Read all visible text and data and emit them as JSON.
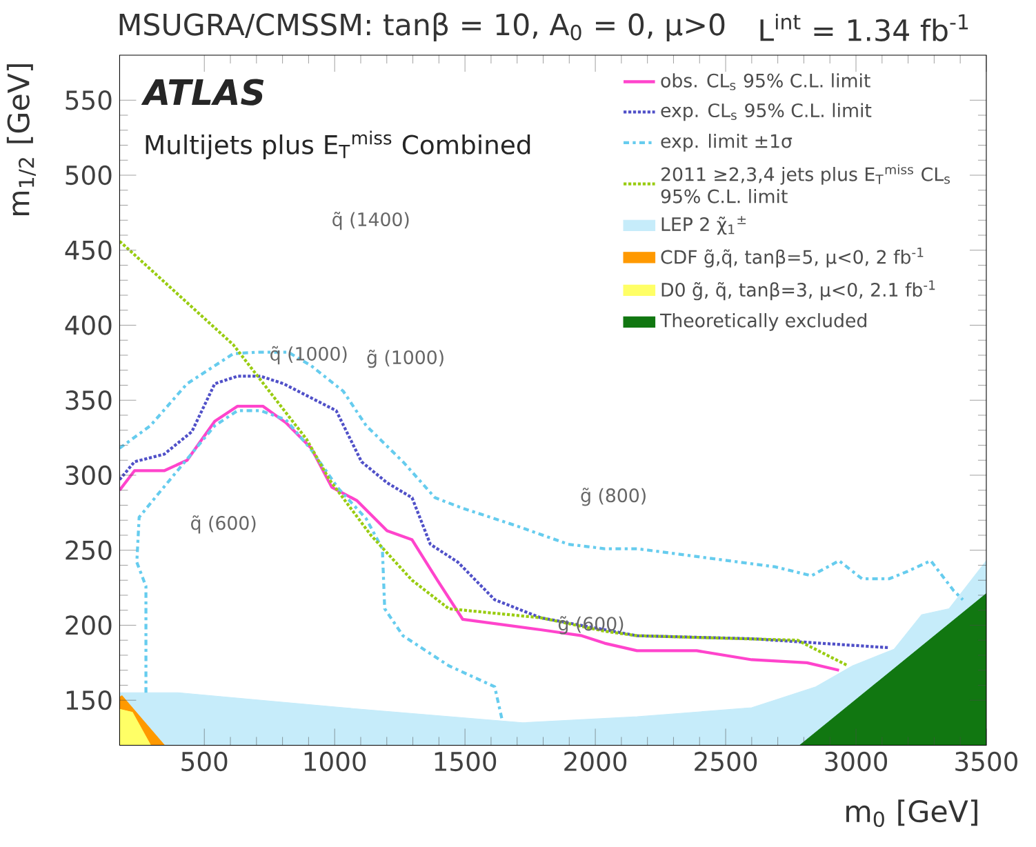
{
  "chart_data": {
    "type": "line",
    "title": "MSUGRA/CMSSM: tanβ = 10, A$_{0}$ = 0, μ>0",
    "subtitle": "L$^{int}$ = 1.34 fb$^{-1}$",
    "xlabel": "m$_{0}$ [GeV]",
    "ylabel": "m$_{1/2}$ [GeV]",
    "xlim": [
      175,
      3500
    ],
    "ylim": [
      120,
      580
    ],
    "xticks": [
      500,
      1000,
      1500,
      2000,
      2500,
      3000,
      3500
    ],
    "yticks": [
      150,
      200,
      250,
      300,
      350,
      400,
      450,
      500,
      550
    ],
    "legend": "top right",
    "marker": "none",
    "grid": false,
    "annotations": [
      "ATLAS",
      "Multijets plus E$_{T}$$^{miss}$ Combined",
      "q̃ (1400)",
      {
        "text": "q̃ (1000)",
        "x": 901,
        "y": 380
      },
      "g̃ (1000)",
      "q̃ (600)",
      "g̃ (800)",
      {
        "text": "g̃ (600)",
        "x": 1984,
        "y": 200
      }
    ],
    "series": [
      {
        "name": "obs. CL$_{s}$ 95% C.L. limit",
        "line_style": "solid",
        "color": "#ff44cc",
        "x": [
          175,
          232,
          346,
          434,
          540,
          627,
          725,
          813,
          910,
          989,
          1086,
          1201,
          1297,
          1394,
          1491,
          1790,
          1948,
          2036,
          2160,
          2389,
          2600,
          2812,
          2935
        ],
        "values": [
          290,
          303,
          303,
          310,
          336,
          346,
          346,
          335,
          318,
          292,
          283,
          263,
          257,
          230,
          204,
          197,
          193,
          188,
          183,
          183,
          177,
          175,
          170
        ]
      },
      {
        "name": "exp. CL$_{s}$ 95% C.L. limit",
        "line_style": "dotted",
        "color": "#5050c8",
        "x": [
          175,
          232,
          346,
          452,
          540,
          627,
          716,
          804,
          1006,
          1103,
          1201,
          1297,
          1367,
          1473,
          1614,
          1790,
          2036,
          2160,
          2600,
          3128
        ],
        "values": [
          297,
          309,
          314,
          329,
          361,
          366,
          366,
          361,
          343,
          309,
          295,
          285,
          254,
          242,
          217,
          205,
          197,
          193,
          191,
          185
        ]
      },
      {
        "name": "exp. limit ±1σ",
        "line_style": "dashed",
        "color": "#66ccee",
        "x": [
          175,
          293,
          434,
          611,
          699,
          822,
          910,
          1033,
          1121,
          1262,
          1385,
          1491,
          1702,
          1896,
          2036,
          2160,
          2424,
          2688,
          2829,
          2935,
          3023,
          3128,
          3199,
          3287,
          3375,
          3410
        ],
        "values": [
          318,
          333,
          361,
          381,
          382,
          382,
          373,
          356,
          333,
          309,
          285,
          278,
          266,
          254,
          251,
          251,
          245,
          239,
          233,
          243,
          231,
          231,
          236,
          243,
          223,
          217
        ]
      },
      {
        "line_style": "dashed",
        "color": "#66ccee",
        "x": [
          276,
          276,
          241,
          250,
          311,
          540,
          627,
          716,
          813,
          910,
          1015,
          1121,
          1183,
          1192,
          1262,
          1438,
          1614,
          1641
        ],
        "values": [
          155,
          226,
          242,
          272,
          285,
          333,
          343,
          343,
          337,
          317,
          291,
          271,
          251,
          211,
          193,
          173,
          159,
          138
        ]
      },
      {
        "name": "2011 ≥2,3,4 jets plus E$_{T}$$^{miss}$ CL$_{s}$ 95% C.L. limit",
        "line_style": "dotted",
        "color": "#99cc11",
        "x": [
          175,
          611,
          892,
          980,
          1139,
          1297,
          1438,
          1790,
          2036,
          2160,
          2776,
          2969
        ],
        "values": [
          456,
          387,
          324,
          297,
          260,
          230,
          211,
          205,
          196,
          193,
          190,
          173
        ]
      },
      {
        "name": "LEP 2 χ̃$_{1}$$^{±}$",
        "type": "area",
        "color": "#c6ecfa",
        "x": [
          175,
          399,
          1033,
          1720,
          2160,
          2600,
          2846,
          2987,
          3146,
          3252,
          3357,
          3500
        ],
        "values": [
          155,
          155,
          145,
          135,
          139,
          145,
          159,
          173,
          184,
          207,
          211,
          243
        ]
      },
      {
        "name": "CDF g̃,q̃, tanβ=5, μ<0, 2 fb$^{-1}$",
        "type": "area",
        "color": "#ff9900",
        "x": [
          175,
          184,
          347
        ],
        "values": [
          152,
          153,
          120
        ]
      },
      {
        "name": "D0 g̃, q̃, tanβ=3, μ<0, 2.1 fb$^{-1}$",
        "type": "area",
        "color": "#ffff66",
        "x": [
          175,
          224,
          294
        ],
        "values": [
          144,
          142,
          120
        ]
      },
      {
        "name": "Theoretically excluded",
        "type": "area",
        "color": "#117711",
        "x": [
          2785,
          3500
        ],
        "values": [
          120,
          221
        ]
      }
    ]
  }
}
